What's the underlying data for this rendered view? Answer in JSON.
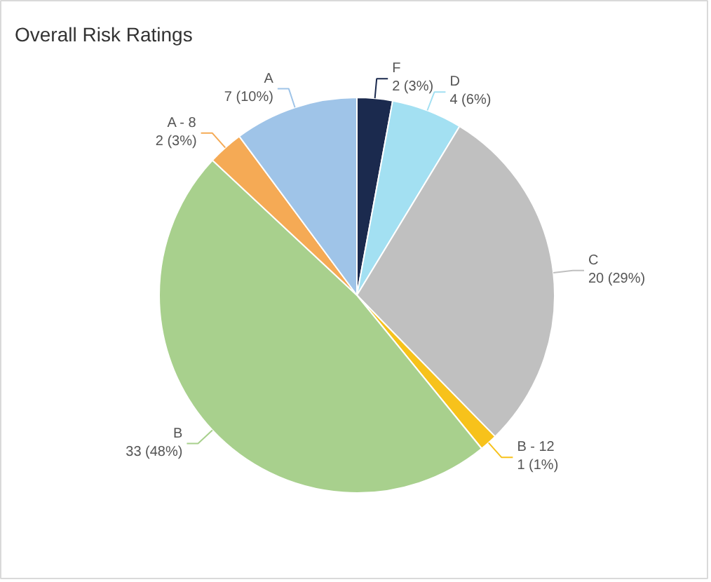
{
  "chart_data": {
    "type": "pie",
    "title": "Overall Risk Ratings",
    "categories": [
      "F",
      "D",
      "C",
      "B - 12",
      "B",
      "A - 8",
      "A"
    ],
    "values": [
      2,
      4,
      20,
      1,
      33,
      2,
      7
    ],
    "value_labels": [
      "2 (3%)",
      "4 (6%)",
      "20 (29%)",
      "1 (1%)",
      "33 (48%)",
      "2 (3%)",
      "7 (10%)"
    ],
    "colors": [
      "#1b2a4e",
      "#a3e0f2",
      "#c0c0c0",
      "#f7c21b",
      "#a8d08d",
      "#f5aa55",
      "#9fc4e8"
    ]
  }
}
